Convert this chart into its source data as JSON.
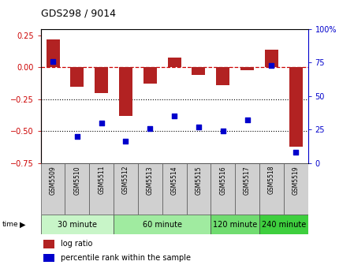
{
  "title": "GDS298 / 9014",
  "samples": [
    "GSM5509",
    "GSM5510",
    "GSM5511",
    "GSM5512",
    "GSM5513",
    "GSM5514",
    "GSM5515",
    "GSM5516",
    "GSM5517",
    "GSM5518",
    "GSM5519"
  ],
  "log_ratio": [
    0.22,
    -0.15,
    -0.2,
    -0.38,
    -0.13,
    0.08,
    -0.06,
    -0.14,
    -0.02,
    0.14,
    -0.62
  ],
  "percentile": [
    76,
    20,
    30,
    16,
    26,
    35,
    27,
    24,
    32,
    73,
    8
  ],
  "groups": [
    {
      "label": "30 minute",
      "start": 0,
      "end": 3,
      "color": "#c8f5c8"
    },
    {
      "label": "60 minute",
      "start": 3,
      "end": 7,
      "color": "#a0eba0"
    },
    {
      "label": "120 minute",
      "start": 7,
      "end": 9,
      "color": "#70dc70"
    },
    {
      "label": "240 minute",
      "start": 9,
      "end": 11,
      "color": "#3ecf3e"
    }
  ],
  "bar_color": "#b22222",
  "dot_color": "#0000cc",
  "ylim_left": [
    -0.75,
    0.3
  ],
  "ylim_right": [
    0,
    100
  ],
  "hlines": [
    0.0,
    -0.25,
    -0.5
  ],
  "hline_colors": [
    "#cc0000",
    "#000000",
    "#000000"
  ],
  "hline_styles": [
    "--",
    ":",
    ":"
  ],
  "yticks_left": [
    0.25,
    0.0,
    -0.25,
    -0.5,
    -0.75
  ],
  "yticks_right": [
    100,
    75,
    50,
    25,
    0
  ],
  "legend_log_ratio": "log ratio",
  "legend_percentile": "percentile rank within the sample",
  "time_label": "time",
  "xlabel_gray_bg": "#d0d0d0",
  "bar_width": 0.55
}
